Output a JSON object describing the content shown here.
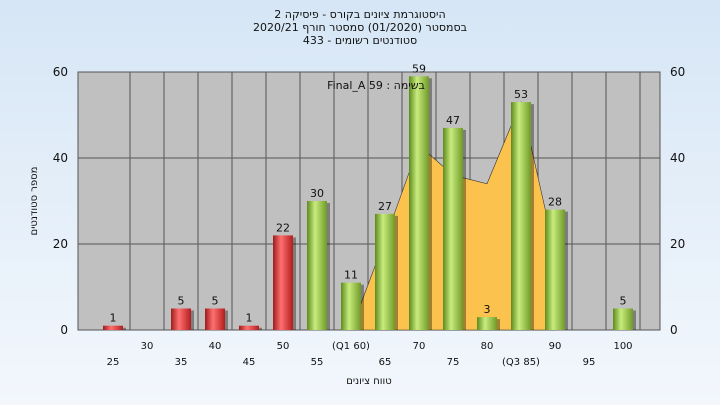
{
  "header": {
    "line1": "היסטוגרמת ציונים בקורס - פיסיקה 2",
    "line2": "בסמסטר  (01/2020)  סמסטר חורף  2020/21",
    "line3": "סטודנטים רשומים - 433"
  },
  "chart_data": {
    "type": "bar",
    "title": "היסטוגרמת ציונים בקורס - פיסיקה 2",
    "xlabel": "טווח ציונים",
    "ylabel": "מספר סטודנטים",
    "ylim": [
      0,
      60
    ],
    "yticks": [
      "0",
      "20",
      "40",
      "60"
    ],
    "grid": true,
    "categories": [
      "25",
      "30",
      "35",
      "40",
      "45",
      "50",
      "55",
      "(Q1 60)",
      "65",
      "70",
      "75",
      "80",
      "(Q3 85)",
      "90",
      "95",
      "100"
    ],
    "values": [
      1,
      0,
      5,
      5,
      1,
      22,
      30,
      11,
      27,
      59,
      47,
      3,
      53,
      28,
      0,
      5
    ],
    "bar_colors": [
      "red",
      "red",
      "red",
      "red",
      "red",
      "red",
      "green",
      "green",
      "green",
      "green",
      "green",
      "green",
      "green",
      "green",
      "green",
      "green"
    ],
    "annotation": "בשימה : Final_A 59",
    "area_series_colors": {
      "fill": "#fcc24e"
    },
    "area_values": [
      0,
      0,
      0,
      0,
      0,
      0,
      0,
      0,
      21,
      43,
      36,
      34,
      53,
      18,
      0,
      0
    ]
  }
}
